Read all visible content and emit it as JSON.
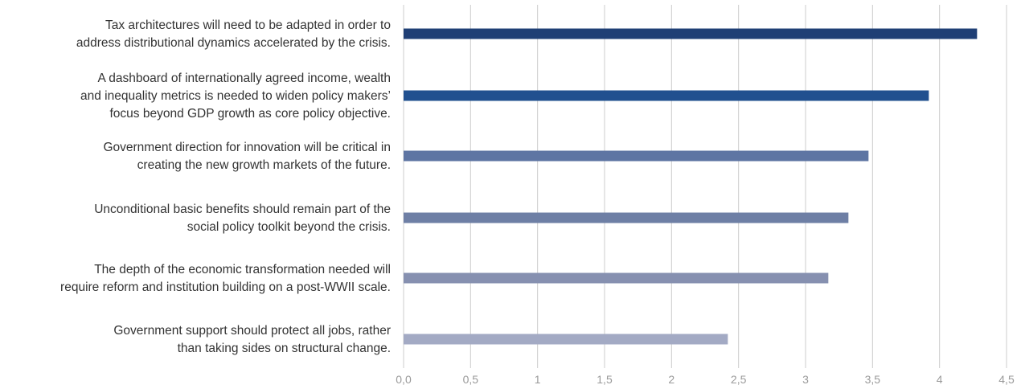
{
  "chart_data": {
    "type": "bar",
    "orientation": "horizontal",
    "categories": [
      [
        "Tax architectures will need to be adapted in order to",
        "address distributional dynamics accelerated by the crisis."
      ],
      [
        "A dashboard of internationally agreed income, wealth",
        "and inequality metrics is needed to widen policy makers’",
        "focus beyond GDP growth as core policy objective."
      ],
      [
        "Government direction for innovation will be critical in",
        "creating the new growth markets of the future."
      ],
      [
        "Unconditional basic benefits should remain part of the",
        "social policy toolkit beyond the crisis."
      ],
      [
        "The depth of the economic transformation needed will",
        "require reform and institution building on a post-WWII scale."
      ],
      [
        "Government support should protect all jobs, rather",
        "than taking sides on structural change."
      ]
    ],
    "values": [
      4.28,
      3.92,
      3.47,
      3.32,
      3.17,
      2.42
    ],
    "bar_colors": [
      "#1f3f75",
      "#21508f",
      "#5e75a3",
      "#6e7fa5",
      "#8690b0",
      "#a3aac4"
    ],
    "xticks": [
      "0,0",
      "0,5",
      "1",
      "1,5",
      "2",
      "2,5",
      "3",
      "3,5",
      "4",
      "4,5"
    ],
    "xlim": [
      0,
      4.5
    ],
    "grid": true,
    "gridline_color": "#cccccc",
    "title": "",
    "xlabel": "",
    "ylabel": ""
  }
}
